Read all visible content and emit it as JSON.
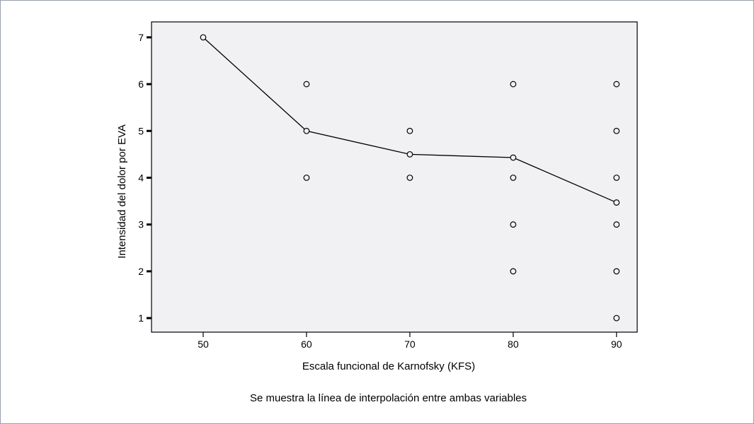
{
  "chart_data": {
    "type": "scatter",
    "xlabel": "Escala funcional de Karnofsky (KFS)",
    "ylabel": "Intensidad del dolor por EVA",
    "x_ticks": [
      50,
      60,
      70,
      80,
      90
    ],
    "y_ticks": [
      1,
      2,
      3,
      4,
      5,
      6,
      7
    ],
    "xlim": [
      45,
      92
    ],
    "ylim": [
      0.7,
      7.33
    ],
    "points": [
      {
        "x": 50,
        "y": 7
      },
      {
        "x": 60,
        "y": 6
      },
      {
        "x": 60,
        "y": 5
      },
      {
        "x": 60,
        "y": 4
      },
      {
        "x": 70,
        "y": 5
      },
      {
        "x": 70,
        "y": 4.5
      },
      {
        "x": 70,
        "y": 4
      },
      {
        "x": 80,
        "y": 6
      },
      {
        "x": 80,
        "y": 4.43
      },
      {
        "x": 80,
        "y": 4
      },
      {
        "x": 80,
        "y": 3
      },
      {
        "x": 80,
        "y": 2
      },
      {
        "x": 90,
        "y": 6
      },
      {
        "x": 90,
        "y": 5
      },
      {
        "x": 90,
        "y": 4
      },
      {
        "x": 90,
        "y": 3.47
      },
      {
        "x": 90,
        "y": 3
      },
      {
        "x": 90,
        "y": 2
      },
      {
        "x": 90,
        "y": 1
      }
    ],
    "interpolation_line": {
      "x": [
        50,
        60,
        70,
        80,
        90
      ],
      "y": [
        7,
        5,
        4.5,
        4.43,
        3.47
      ]
    },
    "plot_background": "#f1f1f3",
    "marker": "open-circle",
    "grid": false
  },
  "caption": "Se muestra la línea de interpolación entre ambas variables"
}
